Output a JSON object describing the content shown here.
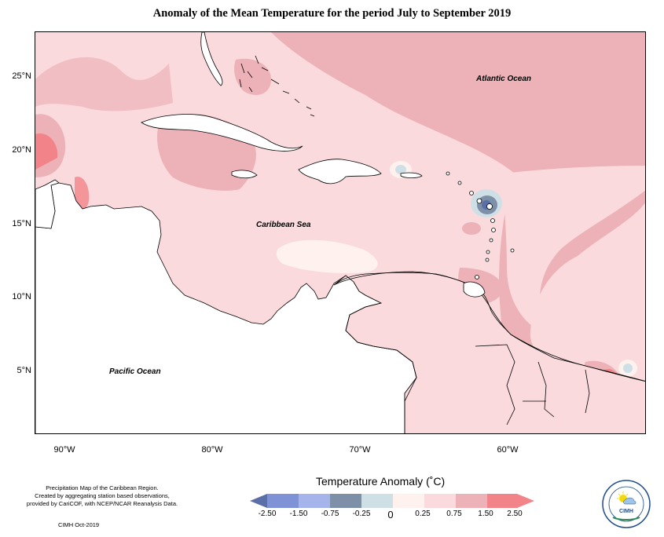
{
  "title": "Anomaly of the Mean Temperature for the period July to September 2019",
  "map": {
    "labels": {
      "atlantic": "Atlantic Ocean",
      "caribbean": "Caribbean Sea",
      "pacific": "Pacific Ocean"
    },
    "lat_ticks": [
      "25°N",
      "20°N",
      "15°N",
      "10°N",
      "5°N"
    ],
    "lon_ticks": [
      "90°W",
      "80°W",
      "70°W",
      "60°W"
    ]
  },
  "caption": {
    "line1": "Precipitation Map of the Caribbean Region.",
    "line2": "Created by aggregating station based observations,",
    "line3": "provided by CariCOF, with NCEP/NCAR Reanalysis Data.",
    "credit": "CIMH Oct-2019"
  },
  "legend": {
    "title": "Temperature Anomaly (˚C)",
    "ticks": [
      "-2.50",
      "-1.50",
      "-0.75",
      "-0.25",
      "0",
      "0.25",
      "0.75",
      "1.50",
      "2.50"
    ],
    "colors": [
      "#5a6ea8",
      "#7f92d6",
      "#a6b4ec",
      "#7e90a8",
      "#cfdfe6",
      "#fff1ee",
      "#fadadd",
      "#ecb2b8",
      "#f28389"
    ]
  },
  "logo": {
    "text": "CIMH",
    "ring_text": "Caribbean Institute for Meteorology and Hydrology"
  }
}
